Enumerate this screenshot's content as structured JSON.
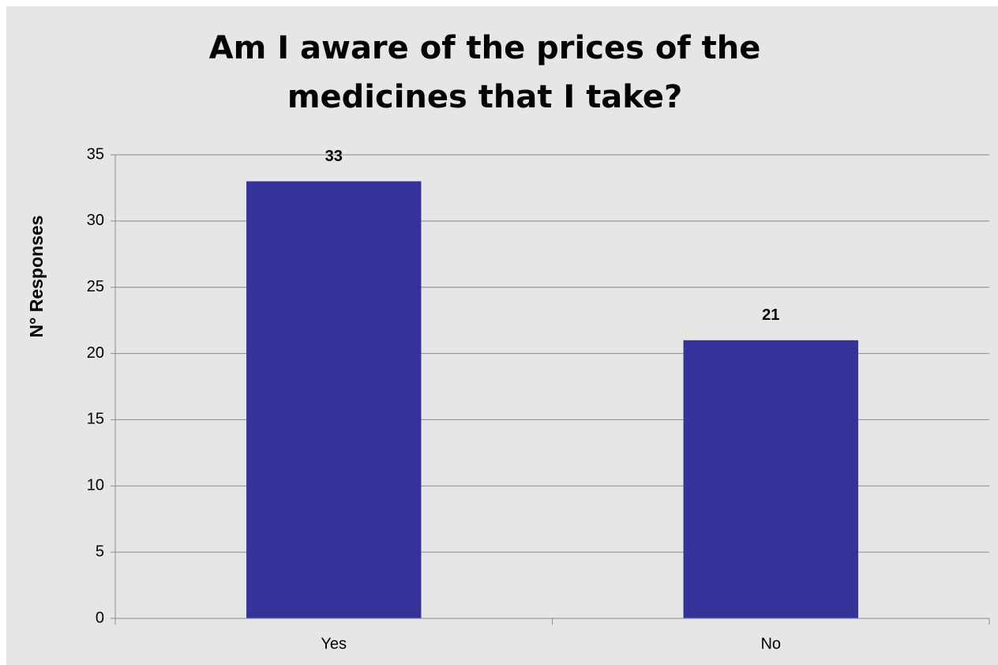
{
  "chart_data": {
    "type": "bar",
    "title": "Am I aware of the prices of the medicines that I take?",
    "y_label": "N° Responses",
    "categories": [
      "Yes",
      "No"
    ],
    "values": [
      33,
      21
    ],
    "color": "#343399",
    "ylim": [
      0,
      35
    ],
    "yticks": [
      0,
      5,
      10,
      15,
      20,
      25,
      30,
      35
    ],
    "grid": true
  }
}
